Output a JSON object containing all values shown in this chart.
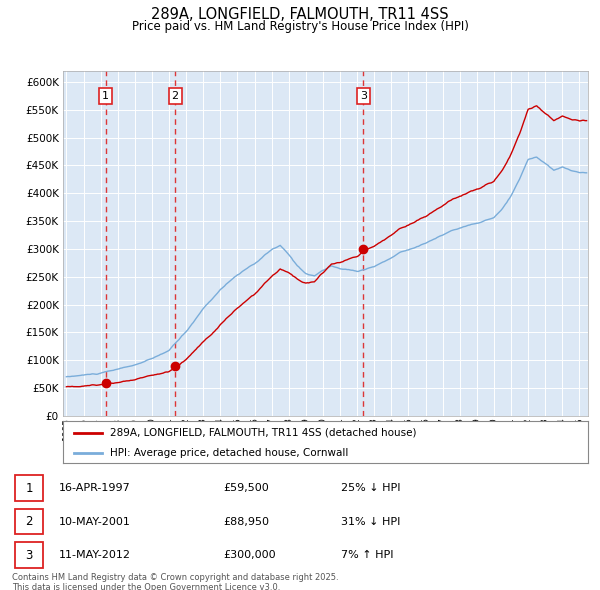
{
  "title": "289A, LONGFIELD, FALMOUTH, TR11 4SS",
  "subtitle": "Price paid vs. HM Land Registry's House Price Index (HPI)",
  "legend_line1": "289A, LONGFIELD, FALMOUTH, TR11 4SS (detached house)",
  "legend_line2": "HPI: Average price, detached house, Cornwall",
  "footer1": "Contains HM Land Registry data © Crown copyright and database right 2025.",
  "footer2": "This data is licensed under the Open Government Licence v3.0.",
  "transactions": [
    {
      "num": "1",
      "date": "16-APR-1997",
      "price": "£59,500",
      "change": "25% ↓ HPI",
      "year": 1997.29
    },
    {
      "num": "2",
      "date": "10-MAY-2001",
      "price": "£88,950",
      "change": "31% ↓ HPI",
      "year": 2001.36
    },
    {
      "num": "3",
      "date": "11-MAY-2012",
      "price": "£300,000",
      "change": "7% ↑ HPI",
      "year": 2012.36
    }
  ],
  "sale_prices": [
    59500,
    88950,
    300000
  ],
  "sale_years": [
    1997.29,
    2001.36,
    2012.36
  ],
  "line_color_red": "#cc0000",
  "line_color_blue": "#7aadda",
  "dashed_line_color": "#dd2222",
  "bg_color": "#dce8f5",
  "ylim_max": 620000,
  "xlim_min": 1994.8,
  "xlim_max": 2025.5
}
